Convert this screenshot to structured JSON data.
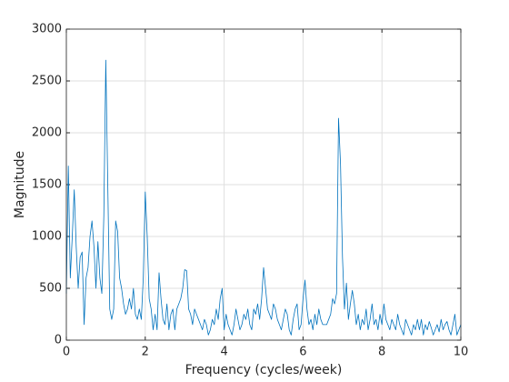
{
  "chart_data": {
    "type": "line",
    "xlabel": "Frequency (cycles/week)",
    "ylabel": "Magnitude",
    "xlim": [
      0,
      10
    ],
    "ylim": [
      0,
      3000
    ],
    "xticks": [
      0,
      2,
      4,
      6,
      8,
      10
    ],
    "yticks": [
      0,
      500,
      1000,
      1500,
      2000,
      2500,
      3000
    ],
    "grid": true,
    "series": [
      {
        "color": "#0072bd",
        "x": [
          0,
          0.05,
          0.1,
          0.15,
          0.2,
          0.25,
          0.3,
          0.35,
          0.4,
          0.45,
          0.5,
          0.55,
          0.6,
          0.65,
          0.7,
          0.75,
          0.8,
          0.85,
          0.9,
          0.95,
          1,
          1.05,
          1.1,
          1.15,
          1.2,
          1.25,
          1.3,
          1.35,
          1.4,
          1.45,
          1.5,
          1.55,
          1.6,
          1.65,
          1.7,
          1.75,
          1.8,
          1.85,
          1.9,
          1.95,
          2,
          2.05,
          2.1,
          2.15,
          2.2,
          2.25,
          2.3,
          2.35,
          2.4,
          2.45,
          2.5,
          2.55,
          2.6,
          2.65,
          2.7,
          2.75,
          2.8,
          2.85,
          2.9,
          2.95,
          3,
          3.05,
          3.1,
          3.15,
          3.2,
          3.25,
          3.3,
          3.35,
          3.4,
          3.45,
          3.5,
          3.55,
          3.6,
          3.65,
          3.7,
          3.75,
          3.8,
          3.85,
          3.9,
          3.95,
          4,
          4.05,
          4.1,
          4.15,
          4.2,
          4.25,
          4.3,
          4.35,
          4.4,
          4.45,
          4.5,
          4.55,
          4.6,
          4.65,
          4.7,
          4.75,
          4.8,
          4.85,
          4.9,
          4.95,
          5,
          5.05,
          5.1,
          5.15,
          5.2,
          5.25,
          5.3,
          5.35,
          5.4,
          5.45,
          5.5,
          5.55,
          5.6,
          5.65,
          5.7,
          5.75,
          5.8,
          5.85,
          5.9,
          5.95,
          6,
          6.05,
          6.1,
          6.15,
          6.2,
          6.25,
          6.3,
          6.35,
          6.4,
          6.45,
          6.5,
          6.55,
          6.6,
          6.65,
          6.7,
          6.75,
          6.8,
          6.85,
          6.9,
          6.95,
          7,
          7.05,
          7.1,
          7.15,
          7.2,
          7.25,
          7.3,
          7.35,
          7.4,
          7.45,
          7.5,
          7.55,
          7.6,
          7.65,
          7.7,
          7.75,
          7.8,
          7.85,
          7.9,
          7.95,
          8,
          8.05,
          8.1,
          8.15,
          8.2,
          8.25,
          8.3,
          8.35,
          8.4,
          8.45,
          8.5,
          8.55,
          8.6,
          8.65,
          8.7,
          8.75,
          8.8,
          8.85,
          8.9,
          8.95,
          9,
          9.05,
          9.1,
          9.15,
          9.2,
          9.25,
          9.3,
          9.35,
          9.4,
          9.45,
          9.5,
          9.55,
          9.6,
          9.65,
          9.7,
          9.75,
          9.8,
          9.85,
          9.9,
          9.95,
          10
        ],
        "values": [
          450,
          1680,
          600,
          1000,
          1450,
          900,
          500,
          800,
          850,
          150,
          600,
          700,
          1000,
          1150,
          900,
          500,
          950,
          600,
          450,
          1200,
          2700,
          1500,
          300,
          200,
          300,
          1150,
          1050,
          600,
          500,
          350,
          250,
          300,
          400,
          300,
          500,
          250,
          200,
          300,
          200,
          600,
          1430,
          1000,
          400,
          300,
          100,
          250,
          100,
          650,
          400,
          200,
          150,
          350,
          100,
          250,
          300,
          100,
          300,
          350,
          400,
          500,
          680,
          670,
          300,
          250,
          150,
          300,
          250,
          200,
          150,
          100,
          200,
          150,
          50,
          100,
          200,
          150,
          300,
          200,
          400,
          500,
          100,
          250,
          150,
          100,
          50,
          150,
          300,
          200,
          100,
          150,
          250,
          200,
          300,
          150,
          100,
          300,
          250,
          350,
          200,
          400,
          700,
          500,
          300,
          250,
          200,
          350,
          300,
          200,
          150,
          100,
          200,
          300,
          250,
          100,
          50,
          200,
          300,
          350,
          100,
          150,
          400,
          580,
          300,
          150,
          200,
          100,
          250,
          150,
          300,
          200,
          150,
          150,
          150,
          200,
          250,
          400,
          350,
          450,
          2140,
          1700,
          800,
          300,
          550,
          200,
          350,
          480,
          350,
          150,
          250,
          100,
          200,
          150,
          300,
          100,
          200,
          350,
          150,
          200,
          100,
          250,
          150,
          350,
          200,
          150,
          100,
          200,
          150,
          100,
          250,
          150,
          100,
          50,
          200,
          150,
          100,
          50,
          150,
          100,
          200,
          100,
          200,
          50,
          150,
          100,
          180,
          120,
          50,
          100,
          150,
          80,
          200,
          100,
          150,
          180,
          100,
          50,
          150,
          250,
          50,
          100,
          150
        ]
      }
    ]
  }
}
